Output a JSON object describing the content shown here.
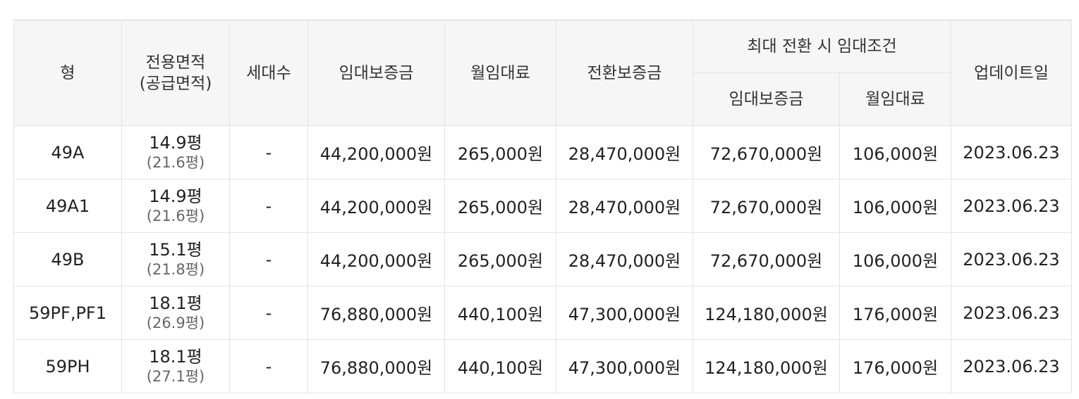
{
  "header": {
    "type": "형",
    "exclusive_area_line1": "전용면적",
    "exclusive_area_line2": "(공급면적)",
    "households": "세대수",
    "deposit": "임대보증금",
    "monthly_rent": "월임대료",
    "conversion_deposit": "전환보증금",
    "max_conversion_group": "최대 전환 시 임대조건",
    "max_deposit": "임대보증금",
    "max_monthly_rent": "월임대료",
    "updated": "업데이트일"
  },
  "rows": [
    {
      "type": "49A",
      "area": "14.9평",
      "supply_area": "(21.6평)",
      "households": "-",
      "deposit": "44,200,000원",
      "monthly_rent": "265,000원",
      "conversion_deposit": "28,470,000원",
      "max_deposit": "72,670,000원",
      "max_monthly_rent": "106,000원",
      "updated": "2023.06.23"
    },
    {
      "type": "49A1",
      "area": "14.9평",
      "supply_area": "(21.6평)",
      "households": "-",
      "deposit": "44,200,000원",
      "monthly_rent": "265,000원",
      "conversion_deposit": "28,470,000원",
      "max_deposit": "72,670,000원",
      "max_monthly_rent": "106,000원",
      "updated": "2023.06.23"
    },
    {
      "type": "49B",
      "area": "15.1평",
      "supply_area": "(21.8평)",
      "households": "-",
      "deposit": "44,200,000원",
      "monthly_rent": "265,000원",
      "conversion_deposit": "28,470,000원",
      "max_deposit": "72,670,000원",
      "max_monthly_rent": "106,000원",
      "updated": "2023.06.23"
    },
    {
      "type": "59PF,PF1",
      "area": "18.1평",
      "supply_area": "(26.9평)",
      "households": "-",
      "deposit": "76,880,000원",
      "monthly_rent": "440,100원",
      "conversion_deposit": "47,300,000원",
      "max_deposit": "124,180,000원",
      "max_monthly_rent": "176,000원",
      "updated": "2023.06.23"
    },
    {
      "type": "59PH",
      "area": "18.1평",
      "supply_area": "(27.1평)",
      "households": "-",
      "deposit": "76,880,000원",
      "monthly_rent": "440,100원",
      "conversion_deposit": "47,300,000원",
      "max_deposit": "124,180,000원",
      "max_monthly_rent": "176,000원",
      "updated": "2023.06.23"
    }
  ]
}
